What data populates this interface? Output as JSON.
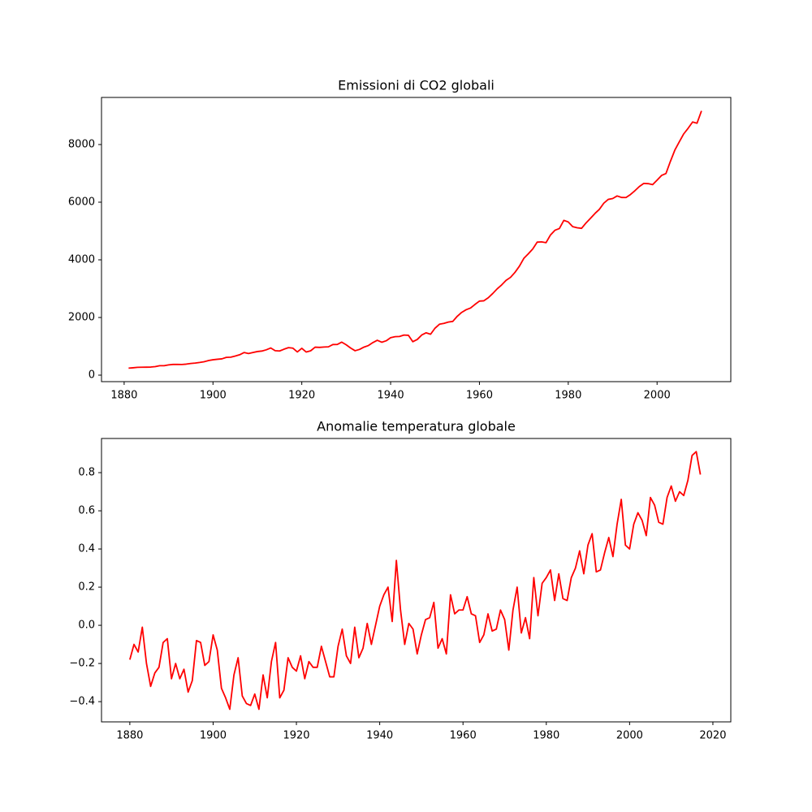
{
  "chart_data": [
    {
      "type": "line",
      "title": "Emissioni di CO2 globali",
      "color": "#ff0000",
      "x": [
        1881,
        1882,
        1883,
        1884,
        1885,
        1886,
        1887,
        1888,
        1889,
        1890,
        1891,
        1892,
        1893,
        1894,
        1895,
        1896,
        1897,
        1898,
        1899,
        1900,
        1901,
        1902,
        1903,
        1904,
        1905,
        1906,
        1907,
        1908,
        1909,
        1910,
        1911,
        1912,
        1913,
        1914,
        1915,
        1916,
        1917,
        1918,
        1919,
        1920,
        1921,
        1922,
        1923,
        1924,
        1925,
        1926,
        1927,
        1928,
        1929,
        1930,
        1931,
        1932,
        1933,
        1934,
        1935,
        1936,
        1937,
        1938,
        1939,
        1940,
        1941,
        1942,
        1943,
        1944,
        1945,
        1946,
        1947,
        1948,
        1949,
        1950,
        1951,
        1952,
        1953,
        1954,
        1955,
        1956,
        1957,
        1958,
        1959,
        1960,
        1961,
        1962,
        1963,
        1964,
        1965,
        1966,
        1967,
        1968,
        1969,
        1970,
        1971,
        1972,
        1973,
        1974,
        1975,
        1976,
        1977,
        1978,
        1979,
        1980,
        1981,
        1982,
        1983,
        1984,
        1985,
        1986,
        1987,
        1988,
        1989,
        1990,
        1991,
        1992,
        1993,
        1994,
        1995,
        1996,
        1997,
        1998,
        1999,
        2000,
        2001,
        2002,
        2003,
        2004,
        2005,
        2006,
        2007,
        2008,
        2009,
        2010
      ],
      "values": [
        243,
        256,
        272,
        275,
        277,
        281,
        295,
        327,
        327,
        356,
        372,
        374,
        370,
        383,
        406,
        419,
        440,
        465,
        507,
        534,
        552,
        566,
        617,
        624,
        663,
        707,
        784,
        750,
        785,
        819,
        836,
        879,
        943,
        850,
        838,
        901,
        955,
        936,
        806,
        932,
        803,
        845,
        970,
        963,
        975,
        983,
        1062,
        1065,
        1145,
        1053,
        940,
        847,
        893,
        973,
        1027,
        1130,
        1209,
        1142,
        1192,
        1299,
        1334,
        1342,
        1391,
        1383,
        1160,
        1238,
        1392,
        1469,
        1419,
        1630,
        1767,
        1795,
        1841,
        1865,
        2042,
        2177,
        2270,
        2330,
        2454,
        2569,
        2580,
        2686,
        2833,
        2995,
        3130,
        3288,
        3393,
        3566,
        3780,
        4053,
        4208,
        4376,
        4614,
        4623,
        4596,
        4864,
        5026,
        5087,
        5369,
        5315,
        5152,
        5113,
        5094,
        5280,
        5439,
        5607,
        5752,
        5965,
        6097,
        6127,
        6217,
        6164,
        6162,
        6266,
        6398,
        6542,
        6651,
        6643,
        6610,
        6765,
        6927,
        6996,
        7416,
        7807,
        8093,
        8370,
        8566,
        8783,
        8740,
        9167
      ],
      "xlim": [
        1874.9,
        2016.6
      ],
      "xticks": [
        1880,
        1900,
        1920,
        1940,
        1960,
        1980,
        2000
      ],
      "ylim": [
        -225,
        9634
      ],
      "yticks": [
        0,
        2000,
        4000,
        6000,
        8000
      ]
    },
    {
      "type": "line",
      "title": "Anomalie temperatura globale",
      "color": "#ff0000",
      "x": [
        1880,
        1881,
        1882,
        1883,
        1884,
        1885,
        1886,
        1887,
        1888,
        1889,
        1890,
        1891,
        1892,
        1893,
        1894,
        1895,
        1896,
        1897,
        1898,
        1899,
        1900,
        1901,
        1902,
        1903,
        1904,
        1905,
        1906,
        1907,
        1908,
        1909,
        1910,
        1911,
        1912,
        1913,
        1914,
        1915,
        1916,
        1917,
        1918,
        1919,
        1920,
        1921,
        1922,
        1923,
        1924,
        1925,
        1926,
        1927,
        1928,
        1929,
        1930,
        1931,
        1932,
        1933,
        1934,
        1935,
        1936,
        1937,
        1938,
        1939,
        1940,
        1941,
        1942,
        1943,
        1944,
        1945,
        1946,
        1947,
        1948,
        1949,
        1950,
        1951,
        1952,
        1953,
        1954,
        1955,
        1956,
        1957,
        1958,
        1959,
        1960,
        1961,
        1962,
        1963,
        1964,
        1965,
        1966,
        1967,
        1968,
        1969,
        1970,
        1971,
        1972,
        1973,
        1974,
        1975,
        1976,
        1977,
        1978,
        1979,
        1980,
        1981,
        1982,
        1983,
        1984,
        1985,
        1986,
        1987,
        1988,
        1989,
        1990,
        1991,
        1992,
        1993,
        1994,
        1995,
        1996,
        1997,
        1998,
        1999,
        2000,
        2001,
        2002,
        2003,
        2004,
        2005,
        2006,
        2007,
        2008,
        2009,
        2010,
        2011,
        2012,
        2013,
        2014,
        2015,
        2016,
        2017
      ],
      "values": [
        -0.18,
        -0.1,
        -0.14,
        -0.01,
        -0.2,
        -0.32,
        -0.25,
        -0.22,
        -0.09,
        -0.07,
        -0.28,
        -0.2,
        -0.28,
        -0.23,
        -0.35,
        -0.29,
        -0.08,
        -0.09,
        -0.21,
        -0.19,
        -0.05,
        -0.13,
        -0.33,
        -0.38,
        -0.44,
        -0.26,
        -0.17,
        -0.37,
        -0.41,
        -0.42,
        -0.36,
        -0.44,
        -0.26,
        -0.38,
        -0.19,
        -0.09,
        -0.38,
        -0.34,
        -0.17,
        -0.22,
        -0.24,
        -0.16,
        -0.28,
        -0.19,
        -0.22,
        -0.22,
        -0.11,
        -0.19,
        -0.27,
        -0.27,
        -0.11,
        -0.02,
        -0.16,
        -0.2,
        -0.01,
        -0.17,
        -0.12,
        0.01,
        -0.1,
        0.0,
        0.1,
        0.16,
        0.2,
        0.02,
        0.34,
        0.08,
        -0.1,
        0.01,
        -0.02,
        -0.15,
        -0.05,
        0.03,
        0.04,
        0.12,
        -0.12,
        -0.07,
        -0.15,
        0.16,
        0.06,
        0.08,
        0.08,
        0.15,
        0.06,
        0.05,
        -0.09,
        -0.05,
        0.06,
        -0.03,
        -0.02,
        0.08,
        0.03,
        -0.13,
        0.08,
        0.2,
        -0.04,
        0.04,
        -0.07,
        0.25,
        0.05,
        0.22,
        0.25,
        0.29,
        0.13,
        0.27,
        0.14,
        0.13,
        0.25,
        0.3,
        0.39,
        0.27,
        0.42,
        0.48,
        0.28,
        0.29,
        0.38,
        0.46,
        0.36,
        0.53,
        0.66,
        0.42,
        0.4,
        0.53,
        0.59,
        0.55,
        0.47,
        0.67,
        0.63,
        0.54,
        0.53,
        0.67,
        0.73,
        0.65,
        0.7,
        0.68,
        0.76,
        0.89,
        0.91,
        0.79
      ],
      "xlim": [
        1873.2,
        2024.3
      ],
      "xticks": [
        1880,
        1900,
        1920,
        1940,
        1960,
        1980,
        2000,
        2020
      ],
      "ylim": [
        -0.506,
        0.979
      ],
      "yticks": [
        {
          "value": -0.4,
          "label": "−0.4"
        },
        {
          "value": -0.2,
          "label": "−0.2"
        },
        {
          "value": 0,
          "label": "0.0"
        },
        0.2,
        0.4,
        0.6,
        0.8
      ]
    }
  ]
}
